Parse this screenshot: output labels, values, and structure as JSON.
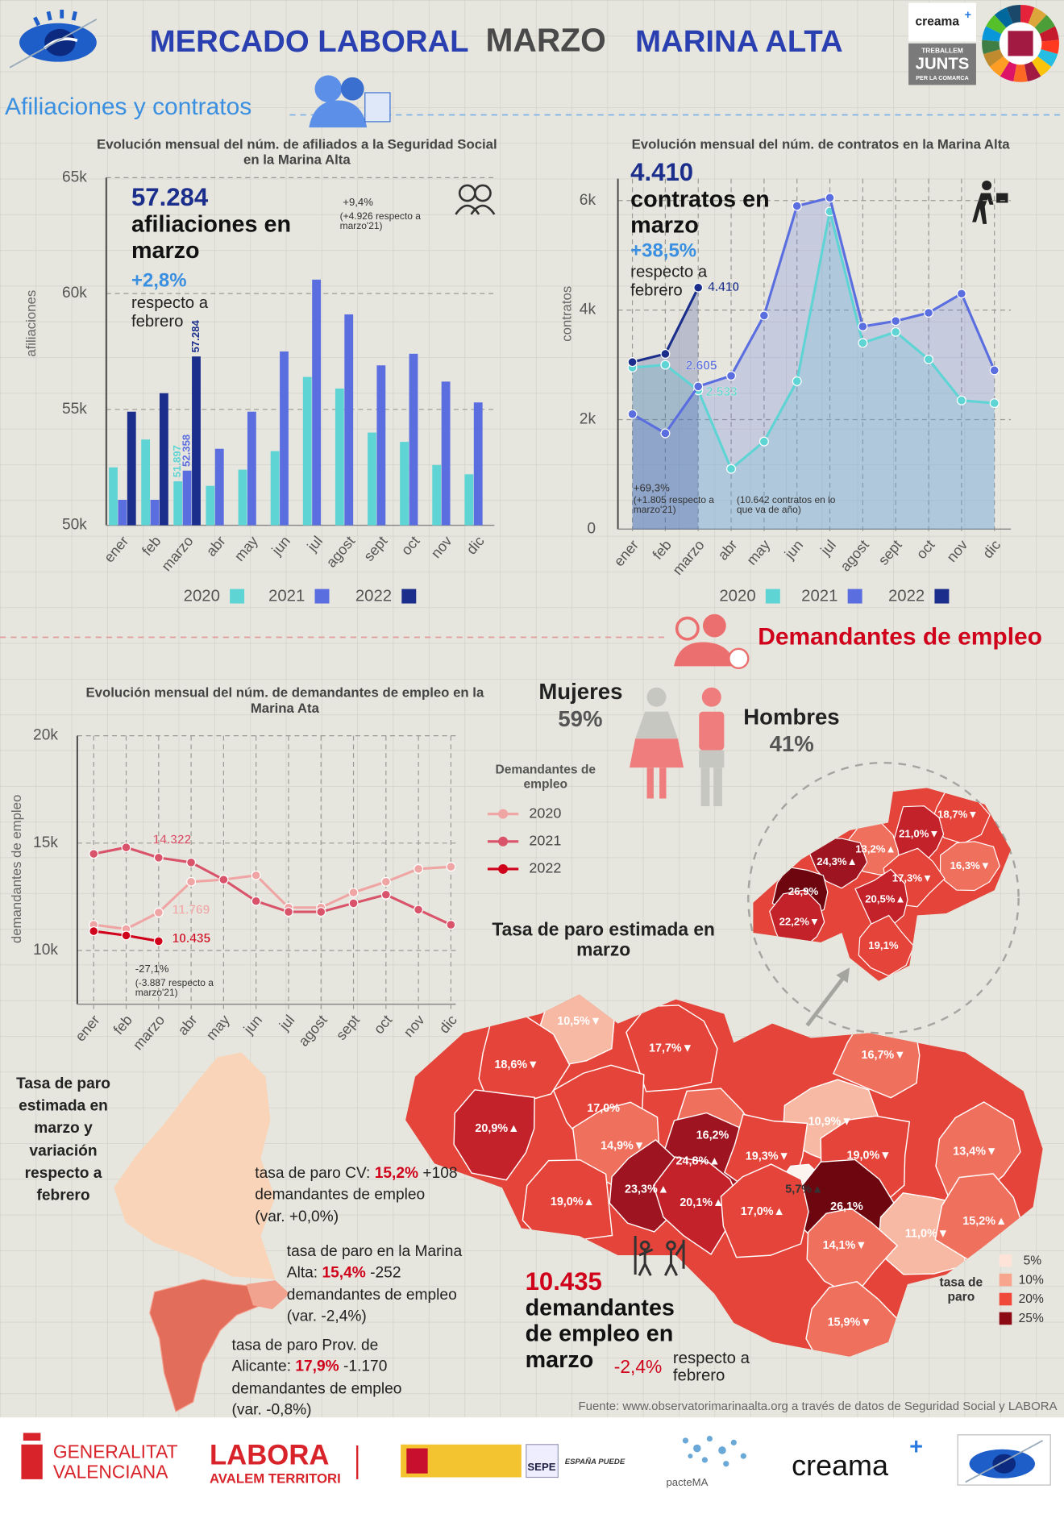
{
  "header": {
    "title_1": "MERCADO LABORAL",
    "title_2": "MARZO",
    "title_3": "MARINA ALTA",
    "logo_creama": "creama",
    "logo_treballem": "TREBALLEM",
    "logo_junts": "JUNTS",
    "logo_comarca": "PER LA COMARCA"
  },
  "sections": [
    "Afiliaciones y contratos",
    "Demandantes de empleo"
  ],
  "chart_data": [
    {
      "type": "bar",
      "title": "Evolución mensual del núm. de afiliados a la Seguridad Social en la Marina Alta",
      "ylabel": "afiliaciones",
      "categories": [
        "ener",
        "feb",
        "marzo",
        "abr",
        "may",
        "jun",
        "jul",
        "agost",
        "sept",
        "oct",
        "nov",
        "dic"
      ],
      "series": [
        {
          "name": "2020",
          "color": "#5fd4d4",
          "values": [
            52500,
            53700,
            51897,
            51700,
            52400,
            53200,
            56400,
            55900,
            54000,
            53600,
            52600,
            52200
          ],
          "value_labels": [
            null,
            null,
            "51.897",
            null,
            null,
            null,
            null,
            null,
            null,
            null,
            null,
            null
          ]
        },
        {
          "name": "2021",
          "color": "#5b6ee0",
          "values": [
            51100,
            51100,
            52358,
            53300,
            54900,
            57500,
            60600,
            59100,
            56900,
            57400,
            56200,
            55300
          ],
          "value_labels": [
            null,
            null,
            "52.358",
            null,
            null,
            null,
            null,
            null,
            null,
            null,
            null,
            null
          ]
        },
        {
          "name": "2022",
          "color": "#1b2e8c",
          "values": [
            54900,
            55700,
            57284,
            null,
            null,
            null,
            null,
            null,
            null,
            null,
            null,
            null
          ],
          "value_labels": [
            null,
            null,
            "57.284",
            null,
            null,
            null,
            null,
            null,
            null,
            null,
            null,
            null
          ]
        }
      ],
      "ylim": [
        50000,
        65000
      ],
      "yticks": [
        {
          "value": 50000,
          "label": "50k"
        },
        {
          "value": 55000,
          "label": "55k"
        },
        {
          "value": 60000,
          "label": "60k"
        },
        {
          "value": 65000,
          "label": "65k"
        }
      ],
      "grid": true,
      "legend": "bottom",
      "annotations": [
        "57.284",
        "afiliaciones en marzo",
        "+2,8%",
        "respecto a febrero",
        "+9,4%",
        "(+4.926 respecto a marzo'21)"
      ]
    },
    {
      "type": "line",
      "area": true,
      "title": "Evolución mensual del núm. de contratos en la Marina Alta",
      "ylabel": "contratos",
      "categories": [
        "ener",
        "feb",
        "marzo",
        "abr",
        "may",
        "jun",
        "jul",
        "agost",
        "sept",
        "oct",
        "nov",
        "dic"
      ],
      "series": [
        {
          "name": "2020",
          "color": "#5fd4d4",
          "values": [
            2950,
            3000,
            2533,
            1100,
            1600,
            2700,
            5800,
            3400,
            3600,
            3100,
            2350,
            2300
          ],
          "value_labels": [
            null,
            null,
            "2.533",
            null,
            null,
            null,
            null,
            null,
            null,
            null,
            null,
            null
          ]
        },
        {
          "name": "2021",
          "color": "#5b6ee0",
          "values": [
            2100,
            1750,
            2605,
            2800,
            3900,
            5900,
            6050,
            3700,
            3800,
            3950,
            4300,
            2900
          ],
          "value_labels": [
            null,
            null,
            "2.605",
            null,
            null,
            null,
            null,
            null,
            null,
            null,
            null,
            null
          ]
        },
        {
          "name": "2022",
          "color": "#1b2e8c",
          "values": [
            3050,
            3200,
            4410,
            null,
            null,
            null,
            null,
            null,
            null,
            null,
            null,
            null
          ],
          "value_labels": [
            null,
            null,
            "4.410",
            null,
            null,
            null,
            null,
            null,
            null,
            null,
            null,
            null
          ]
        }
      ],
      "ylim": [
        0,
        6400
      ],
      "yticks": [
        0,
        {
          "value": 2000,
          "label": "2k"
        },
        {
          "value": 4000,
          "label": "4k"
        },
        {
          "value": 6000,
          "label": "6k"
        }
      ],
      "grid": true,
      "xgrid": true,
      "legend": "bottom",
      "annotations": [
        "4.410",
        "contratos en marzo",
        "+38,5%",
        "respecto a febrero",
        "+69,3%",
        "(+1.805 respecto a marzo'21)",
        "(10.642 contratos en lo que va de año)"
      ]
    },
    {
      "type": "line",
      "area": false,
      "title": "Evolución mensual del núm. de demandantes de empleo en la Marina Ata",
      "ylabel": "demandantes de empleo",
      "categories": [
        "ener",
        "feb",
        "marzo",
        "abr",
        "may",
        "jun",
        "jul",
        "agost",
        "sept",
        "oct",
        "nov",
        "dic"
      ],
      "series": [
        {
          "name": "2020",
          "color": "#f0a5a5",
          "values": [
            11200,
            11000,
            11769,
            13200,
            13300,
            13500,
            12000,
            12000,
            12700,
            13200,
            13800,
            13900
          ],
          "value_labels": [
            null,
            null,
            "11.769",
            null,
            null,
            null,
            null,
            null,
            null,
            null,
            null,
            null
          ]
        },
        {
          "name": "2021",
          "color": "#d9546a",
          "values": [
            14500,
            14800,
            14322,
            14100,
            13300,
            12300,
            11800,
            11800,
            12200,
            12600,
            11900,
            11200
          ],
          "value_labels": [
            null,
            null,
            "14.322",
            null,
            null,
            null,
            null,
            null,
            null,
            null,
            null,
            null
          ]
        },
        {
          "name": "2022",
          "color": "#d0021b",
          "values": [
            10900,
            10700,
            10435,
            null,
            null,
            null,
            null,
            null,
            null,
            null,
            null,
            null
          ],
          "value_labels": [
            null,
            null,
            "10.435",
            null,
            null,
            null,
            null,
            null,
            null,
            null,
            null,
            null
          ]
        }
      ],
      "ylim": [
        7500,
        20000
      ],
      "yticks": [
        {
          "value": 10000,
          "label": "10k"
        },
        {
          "value": 15000,
          "label": "15k"
        },
        {
          "value": 20000,
          "label": "20k"
        }
      ],
      "grid": true,
      "xgrid": true,
      "legend": "right",
      "legend_title": "Demandantes de empleo",
      "annotations": [
        "-27,1%",
        "(-3.887 respecto a marzo'21)"
      ]
    }
  ],
  "gender": {
    "women_label": "Mujeres",
    "women_value": "59%",
    "men_label": "Hombres",
    "men_value": "41%"
  },
  "map": {
    "title": "Tasa de paro estimada en marzo",
    "labels": [
      "10,5%▼",
      "17,7%▼",
      "18,6%▼",
      "16,7%▼",
      "17,0%",
      "10,9%▼",
      "16,2%",
      "14,9%▼",
      "20,9%▲",
      "24,8%▲",
      "19,3%▼",
      "19,0%▼",
      "13,4%▼",
      "23,3%▲",
      "20,1%▲",
      "19,0%▲",
      "5,7%▲",
      "26,1%",
      "17,0%▲",
      "11,0%▼",
      "15,2%▲",
      "14,1%▼",
      "15,9%▼"
    ],
    "inset_labels": [
      "18,7%▼",
      "21,0%▼",
      "13,2%▲",
      "24,3%▲",
      "16,3%▼",
      "17,3%▼",
      "26,9%",
      "20,5%▲",
      "22,2%▼",
      "19,1%"
    ],
    "legend_title": "tasa de paro",
    "legend": [
      "5%",
      "10%",
      "20%",
      "25%"
    ]
  },
  "region_panel": {
    "title": "Tasa de paro estimada en marzo y variación respecto a febrero",
    "cv_label": "tasa de paro CV:",
    "cv_value": "15,2%",
    "cv_detail": "+108 demandantes de empleo (var. +0,0%)",
    "ma_label": "tasa de paro en la Marina Alta:",
    "ma_value": "15,4%",
    "ma_detail": "-252 demandantes de empleo (var. -2,4%)",
    "prov_label": "tasa de paro Prov. de Alicante:",
    "prov_value": "17,9%",
    "prov_detail": "-1.170 demandantes de empleo (var. -0,8%)"
  },
  "summary": {
    "value": "10.435",
    "text": "demandantes de empleo en marzo",
    "change": "-2,4%",
    "change_text": "respecto a febrero"
  },
  "source": "Fuente: www.observatorimarinaalta.org a través de datos de Seguridad Social y LABORA",
  "footer": [
    "GENERALITAT",
    "VALENCIANA",
    "LABORA",
    "AVALEM TERRITORI",
    "SEPE",
    "ESPAÑA PUEDE",
    "pacteMA",
    "creama"
  ]
}
